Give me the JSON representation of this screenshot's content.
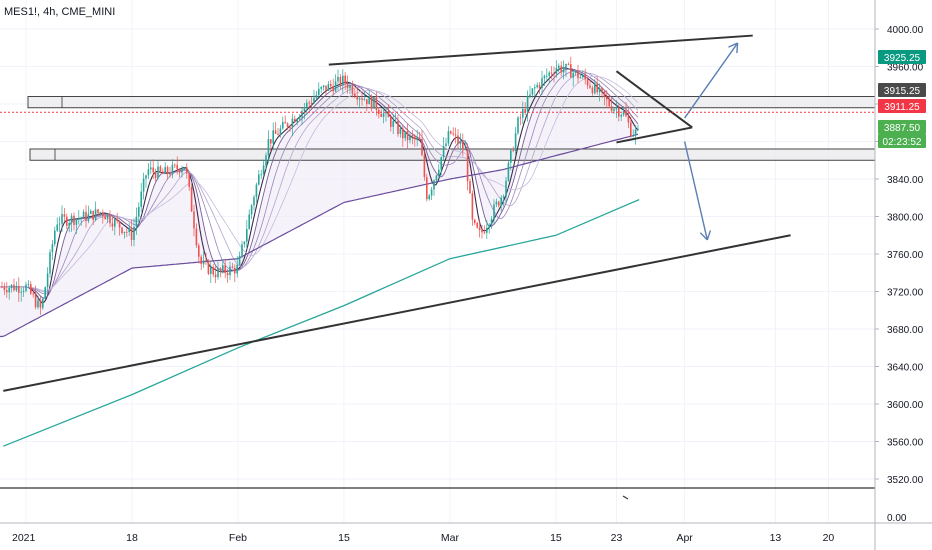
{
  "symbol_title": "MES1!, 4h, CME_MINI",
  "price_axis": {
    "ticks": [
      "4000.00",
      "3960.00",
      "3920.00",
      "3880.00",
      "3840.00",
      "3800.00",
      "3760.00",
      "3720.00",
      "3680.00",
      "3640.00",
      "3600.00",
      "3560.00",
      "3520.00"
    ],
    "tick_values": [
      4000,
      3960,
      3920,
      3880,
      3840,
      3800,
      3760,
      3720,
      3680,
      3640,
      3600,
      3560,
      3520
    ]
  },
  "volume_axis": {
    "label": "0.00"
  },
  "time_axis": {
    "labels": [
      "2021",
      "18",
      "Feb",
      "15",
      "Mar",
      "15",
      "23",
      "Apr",
      "13",
      "20"
    ]
  },
  "price_tags": [
    {
      "text": "3925.25",
      "color": "#089981",
      "text_color": "#ffffff"
    },
    {
      "text": "3915.25",
      "color": "#4a4a4a",
      "text_color": "#ffffff"
    },
    {
      "text": "3911.25",
      "color": "#f23645",
      "text_color": "#ffffff"
    },
    {
      "text": "3887.50",
      "color": "#4caf50",
      "text_color": "#ffffff"
    },
    {
      "text": "02:23:52",
      "color": "#4caf50",
      "text_color": "#ffffff"
    }
  ],
  "chart_data": {
    "type": "candlestick",
    "title": "MES1!, 4h, CME_MINI",
    "ylim": [
      3505,
      4015
    ],
    "grid": true,
    "colors": {
      "up": "#26a69a",
      "down": "#ef5350",
      "ma_long": "#26a69a",
      "ma_mid": "#6a4c9c",
      "trendline": "#333333",
      "arrow": "#5b7fb5"
    },
    "x_dates": [
      "2021-01-04",
      "2021-01-18",
      "2021-02-01",
      "2021-02-15",
      "2021-03-01",
      "2021-03-15",
      "2021-03-23",
      "2021-04-01",
      "2021-04-13",
      "2021-04-20"
    ],
    "close_path": [
      [
        "2021-01-04",
        3725
      ],
      [
        "2021-01-06",
        3700
      ],
      [
        "2021-01-08",
        3795
      ],
      [
        "2021-01-12",
        3800
      ],
      [
        "2021-01-14",
        3805
      ],
      [
        "2021-01-18",
        3780
      ],
      [
        "2021-01-20",
        3850
      ],
      [
        "2021-01-22",
        3845
      ],
      [
        "2021-01-25",
        3855
      ],
      [
        "2021-01-27",
        3750
      ],
      [
        "2021-01-29",
        3740
      ],
      [
        "2021-02-01",
        3745
      ],
      [
        "2021-02-03",
        3820
      ],
      [
        "2021-02-05",
        3880
      ],
      [
        "2021-02-09",
        3910
      ],
      [
        "2021-02-12",
        3935
      ],
      [
        "2021-02-15",
        3945
      ],
      [
        "2021-02-17",
        3930
      ],
      [
        "2021-02-19",
        3920
      ],
      [
        "2021-02-23",
        3885
      ],
      [
        "2021-02-25",
        3880
      ],
      [
        "2021-02-26",
        3820
      ],
      [
        "2021-03-01",
        3890
      ],
      [
        "2021-03-03",
        3870
      ],
      [
        "2021-03-04",
        3790
      ],
      [
        "2021-03-05",
        3780
      ],
      [
        "2021-03-08",
        3825
      ],
      [
        "2021-03-10",
        3900
      ],
      [
        "2021-03-12",
        3935
      ],
      [
        "2021-03-15",
        3960
      ],
      [
        "2021-03-17",
        3955
      ],
      [
        "2021-03-19",
        3945
      ],
      [
        "2021-03-22",
        3920
      ],
      [
        "2021-03-24",
        3910
      ],
      [
        "2021-03-25",
        3890
      ],
      [
        "2021-03-26",
        3888
      ]
    ],
    "ma_long": [
      [
        "2021-01-01",
        3555
      ],
      [
        "2021-01-18",
        3610
      ],
      [
        "2021-02-01",
        3660
      ],
      [
        "2021-02-15",
        3705
      ],
      [
        "2021-03-01",
        3755
      ],
      [
        "2021-03-15",
        3780
      ],
      [
        "2021-03-26",
        3818
      ]
    ],
    "ma_mid": [
      [
        "2021-01-01",
        3672
      ],
      [
        "2021-01-18",
        3745
      ],
      [
        "2021-02-01",
        3755
      ],
      [
        "2021-02-15",
        3815
      ],
      [
        "2021-03-01",
        3840
      ],
      [
        "2021-03-08",
        3850
      ],
      [
        "2021-03-15",
        3865
      ],
      [
        "2021-03-26",
        3888
      ]
    ],
    "trendlines": [
      {
        "from": [
          "2021-02-13",
          3962
        ],
        "to": [
          "2021-04-10",
          3993
        ]
      },
      {
        "from": [
          "2021-01-01",
          3614
        ],
        "to": [
          "2021-04-15",
          3780
        ]
      },
      {
        "from": [
          "2021-03-23",
          3955
        ],
        "to": [
          "2021-04-02",
          3895
        ]
      },
      {
        "from": [
          "2021-03-23",
          3879
        ],
        "to": [
          "2021-04-02",
          3895
        ]
      }
    ],
    "zones": [
      {
        "low": 3916,
        "high": 3928
      },
      {
        "low": 3860,
        "high": 3872
      }
    ],
    "arrows": [
      {
        "from": [
          "2021-04-01",
          3905
        ],
        "to": [
          "2021-04-08",
          3985
        ]
      },
      {
        "from": [
          "2021-04-01",
          3880
        ],
        "to": [
          "2021-04-04",
          3775
        ]
      }
    ]
  }
}
